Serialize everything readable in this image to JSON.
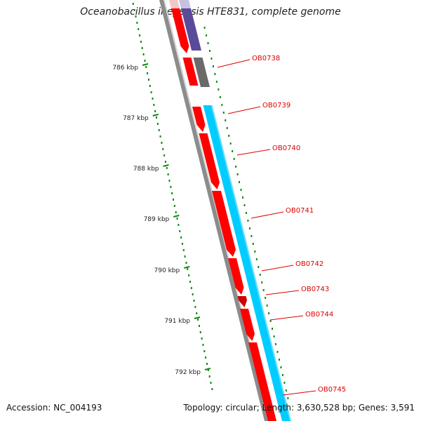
{
  "title": "Oceanobacillus iheyensis HTE831, complete genome",
  "footer": {
    "accession": "Accession: NC_004193",
    "summary": "Topology: circular; Length: 3,630,528 bp; Genes: 3,591"
  },
  "ticks": [
    "786 kbp",
    "787 kbp",
    "788 kbp",
    "789 kbp",
    "790 kbp",
    "791 kbp",
    "792 kbp"
  ],
  "genes": [
    "OB0738",
    "OB0739",
    "OB0740",
    "OB0741",
    "OB0742",
    "OB0743",
    "OB0744",
    "OB0745"
  ],
  "colors": {
    "cds": "#ff0000",
    "cds_dark": "#cc0000",
    "rna": "#00ccff",
    "other": "#6a6a6a",
    "purple": "#5a4a9a",
    "backbone": "#888888",
    "tick": "#118811",
    "label": "#dd0000"
  }
}
